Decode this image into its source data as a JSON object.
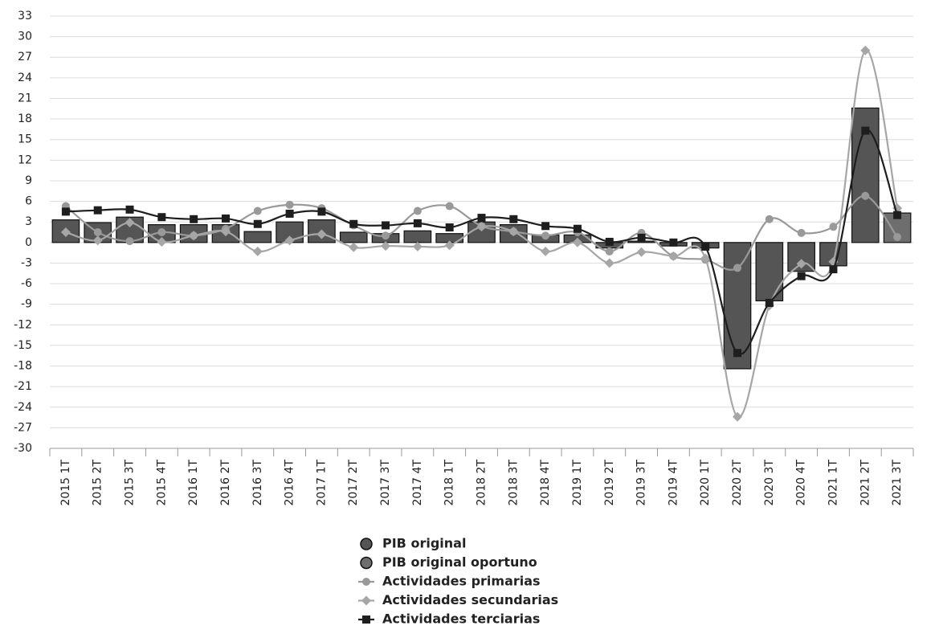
{
  "chart_data": {
    "type": "combo",
    "categories": [
      "2015 1T",
      "2015 2T",
      "2015 3T",
      "2015 4T",
      "2016 1T",
      "2016 2T",
      "2016 3T",
      "2016 4T",
      "2017 1T",
      "2017 2T",
      "2017 3T",
      "2017 4T",
      "2018 1T",
      "2018 2T",
      "2018 3T",
      "2018 4T",
      "2019 1T",
      "2019 2T",
      "2019 3T",
      "2019 4T",
      "2020 1T",
      "2020 2T",
      "2020 3T",
      "2020 4T",
      "2021 1T",
      "2021 2T",
      "2021 3T"
    ],
    "ylim": [
      -30,
      33
    ],
    "yticks": [
      -30,
      -27,
      -24,
      -21,
      -18,
      -15,
      -12,
      -9,
      -6,
      -3,
      0,
      3,
      6,
      9,
      12,
      15,
      18,
      21,
      24,
      27,
      30,
      33
    ],
    "grid": true,
    "series": [
      {
        "name": "PIB original",
        "type": "bar",
        "marker": "circle",
        "color": "#555555",
        "values": [
          3.3,
          2.9,
          3.7,
          2.6,
          2.6,
          2.6,
          1.6,
          3.0,
          3.3,
          1.5,
          1.3,
          1.7,
          1.3,
          3.0,
          2.6,
          1.1,
          1.1,
          -0.8,
          0.2,
          -0.5,
          -0.8,
          -18.4,
          -8.5,
          -4.2,
          -3.4,
          19.6,
          null
        ]
      },
      {
        "name": "PIB original oportuno",
        "type": "bar",
        "marker": "circle",
        "color": "#6e6e6e",
        "values": [
          null,
          null,
          null,
          null,
          null,
          null,
          null,
          null,
          null,
          null,
          null,
          null,
          null,
          null,
          null,
          null,
          null,
          null,
          null,
          null,
          null,
          null,
          null,
          null,
          null,
          null,
          4.3
        ]
      },
      {
        "name": "Actividades primarias",
        "type": "line",
        "marker": "circle",
        "color": "#999999",
        "values": [
          5.3,
          1.5,
          0.2,
          1.5,
          1.0,
          2.0,
          4.6,
          5.5,
          5.0,
          2.5,
          1.0,
          4.6,
          5.3,
          2.4,
          1.6,
          1.0,
          1.5,
          -1.3,
          1.4,
          -2.0,
          -2.5,
          -3.7,
          3.4,
          1.4,
          2.3,
          6.8,
          0.8
        ]
      },
      {
        "name": "Actividades secundarias",
        "type": "line",
        "marker": "diamond",
        "color": "#a6a6a6",
        "values": [
          1.5,
          0.3,
          2.9,
          0.1,
          1.0,
          1.6,
          -1.3,
          0.3,
          1.2,
          -0.7,
          -0.5,
          -0.6,
          -0.4,
          2.3,
          1.6,
          -1.3,
          0.0,
          -3.0,
          -1.4,
          -2.0,
          -2.3,
          -25.4,
          -9.2,
          -3.1,
          -2.8,
          28.0,
          5.0
        ]
      },
      {
        "name": "Actividades terciarias",
        "type": "line",
        "marker": "square",
        "color": "#1e1e1e",
        "values": [
          4.5,
          4.7,
          4.8,
          3.7,
          3.4,
          3.5,
          2.7,
          4.2,
          4.5,
          2.7,
          2.5,
          2.8,
          2.2,
          3.6,
          3.4,
          2.4,
          2.0,
          0.1,
          0.7,
          0.0,
          -0.6,
          -16.1,
          -8.8,
          -4.9,
          -3.9,
          16.3,
          4.0
        ]
      }
    ]
  }
}
